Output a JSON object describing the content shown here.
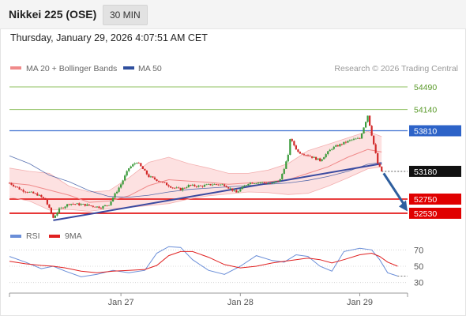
{
  "header": {
    "title": "Nikkei 225 (OSE)",
    "timeframe": "30 MIN"
  },
  "timestamp": "Thursday, January 29, 2026 4:07:51 AM CET",
  "credit": "Research © 2026 Trading Central",
  "colors": {
    "bullish": "#3b9b3b",
    "bearish": "#d22727",
    "ma50": "#2f4f9e",
    "bollinger": "#f08a8a",
    "band_fill": "#fde1e1",
    "trendline": "#3a4aa0",
    "rsi": "#6a8ed8",
    "rsi_ma": "#e02020",
    "target_arrow": "#2e5e9e",
    "resistance_line": "#8fc060",
    "pivot_line": "#3d6fd0",
    "support_line": "#e00000"
  },
  "chart_data": [
    {
      "type": "candlestick",
      "legend": [
        {
          "name": "MA 20 + Bollinger Bands",
          "color": "#f08a8a"
        },
        {
          "name": "MA 50",
          "color": "#2f4f9e"
        }
      ],
      "x_ticks": [
        "Jan 27",
        "Jan 28",
        "Jan 29"
      ],
      "ylim": [
        52370,
        54650
      ],
      "levels": [
        {
          "label": "54490",
          "value": 54490,
          "style": "resistance",
          "text_color": "#5a9a2a"
        },
        {
          "label": "54140",
          "value": 54140,
          "style": "resistance",
          "text_color": "#5a9a2a"
        },
        {
          "label": "53810",
          "value": 53810,
          "style": "pivot",
          "badge": "#2d63c8"
        },
        {
          "label": "53180",
          "value": 53180,
          "style": "last_price",
          "badge": "#111111"
        },
        {
          "label": "52750",
          "value": 52750,
          "style": "support",
          "badge": "#e00000"
        },
        {
          "label": "52530",
          "value": 52530,
          "style": "support",
          "badge": "#e00000"
        }
      ],
      "series": [
        {
          "name": "MA 20 + Bollinger Bands",
          "x": [
            0,
            10,
            20,
            30,
            40,
            50,
            60,
            70,
            80,
            90,
            100,
            110,
            120,
            130,
            140,
            150,
            160,
            170,
            180,
            187
          ],
          "values": [
            53000,
            52970,
            52890,
            52810,
            52700,
            52720,
            52800,
            52960,
            53050,
            53030,
            53010,
            52980,
            53000,
            53020,
            53050,
            53150,
            53250,
            53400,
            53520,
            53480
          ]
        },
        {
          "name": "Bollinger upper",
          "x": [
            0,
            10,
            20,
            30,
            40,
            50,
            60,
            70,
            80,
            90,
            100,
            110,
            120,
            130,
            140,
            150,
            160,
            170,
            180,
            187
          ],
          "values": [
            53230,
            53180,
            53150,
            52950,
            52860,
            52880,
            53080,
            53320,
            53400,
            53300,
            53230,
            53150,
            53150,
            53200,
            53300,
            53500,
            53600,
            53700,
            53800,
            53720
          ]
        },
        {
          "name": "Bollinger lower",
          "x": [
            0,
            10,
            20,
            30,
            40,
            50,
            60,
            70,
            80,
            90,
            100,
            110,
            120,
            130,
            140,
            150,
            160,
            170,
            180,
            187
          ],
          "values": [
            52780,
            52720,
            52580,
            52590,
            52560,
            52600,
            52620,
            52650,
            52680,
            52750,
            52800,
            52830,
            52860,
            52850,
            52820,
            52840,
            52950,
            53080,
            53220,
            53250
          ]
        },
        {
          "name": "MA 50",
          "x": [
            0,
            10,
            20,
            30,
            40,
            50,
            60,
            70,
            80,
            90,
            100,
            110,
            120,
            130,
            140,
            150,
            160,
            170,
            180,
            187
          ],
          "values": [
            53420,
            53300,
            53120,
            53020,
            52880,
            52790,
            52780,
            52810,
            52860,
            52900,
            52920,
            52940,
            52960,
            52980,
            53000,
            53040,
            53100,
            53180,
            53290,
            53320
          ]
        },
        {
          "name": "Trendline",
          "x": [
            22,
            187
          ],
          "values": [
            52420,
            53300
          ]
        }
      ],
      "target_arrow": {
        "from": {
          "x": 188,
          "value": 53150
        },
        "to": {
          "x": 200,
          "value": 52560
        }
      }
    },
    {
      "type": "line",
      "legend": [
        {
          "name": "RSI",
          "color": "#6a8ed8"
        },
        {
          "name": "9MA",
          "color": "#e02020"
        }
      ],
      "y_ticks": [
        "70",
        "50",
        "30"
      ],
      "ylim": [
        20,
        80
      ],
      "x": [
        0,
        8,
        16,
        22,
        28,
        36,
        44,
        52,
        60,
        68,
        74,
        80,
        86,
        92,
        100,
        108,
        116,
        124,
        132,
        138,
        144,
        150,
        156,
        162,
        168,
        176,
        182,
        186,
        190,
        195
      ],
      "series": [
        {
          "name": "RSI",
          "values": [
            62,
            55,
            47,
            50,
            44,
            37,
            40,
            45,
            42,
            45,
            66,
            74,
            73,
            58,
            45,
            40,
            50,
            63,
            57,
            55,
            64,
            62,
            50,
            44,
            68,
            72,
            70,
            58,
            42,
            38
          ]
        },
        {
          "name": "9MA",
          "values": [
            56,
            53,
            51,
            50,
            48,
            44,
            42,
            44,
            45,
            46,
            51,
            63,
            68,
            68,
            61,
            52,
            48,
            50,
            54,
            56,
            58,
            60,
            58,
            54,
            58,
            64,
            66,
            62,
            55,
            50
          ]
        }
      ]
    }
  ]
}
